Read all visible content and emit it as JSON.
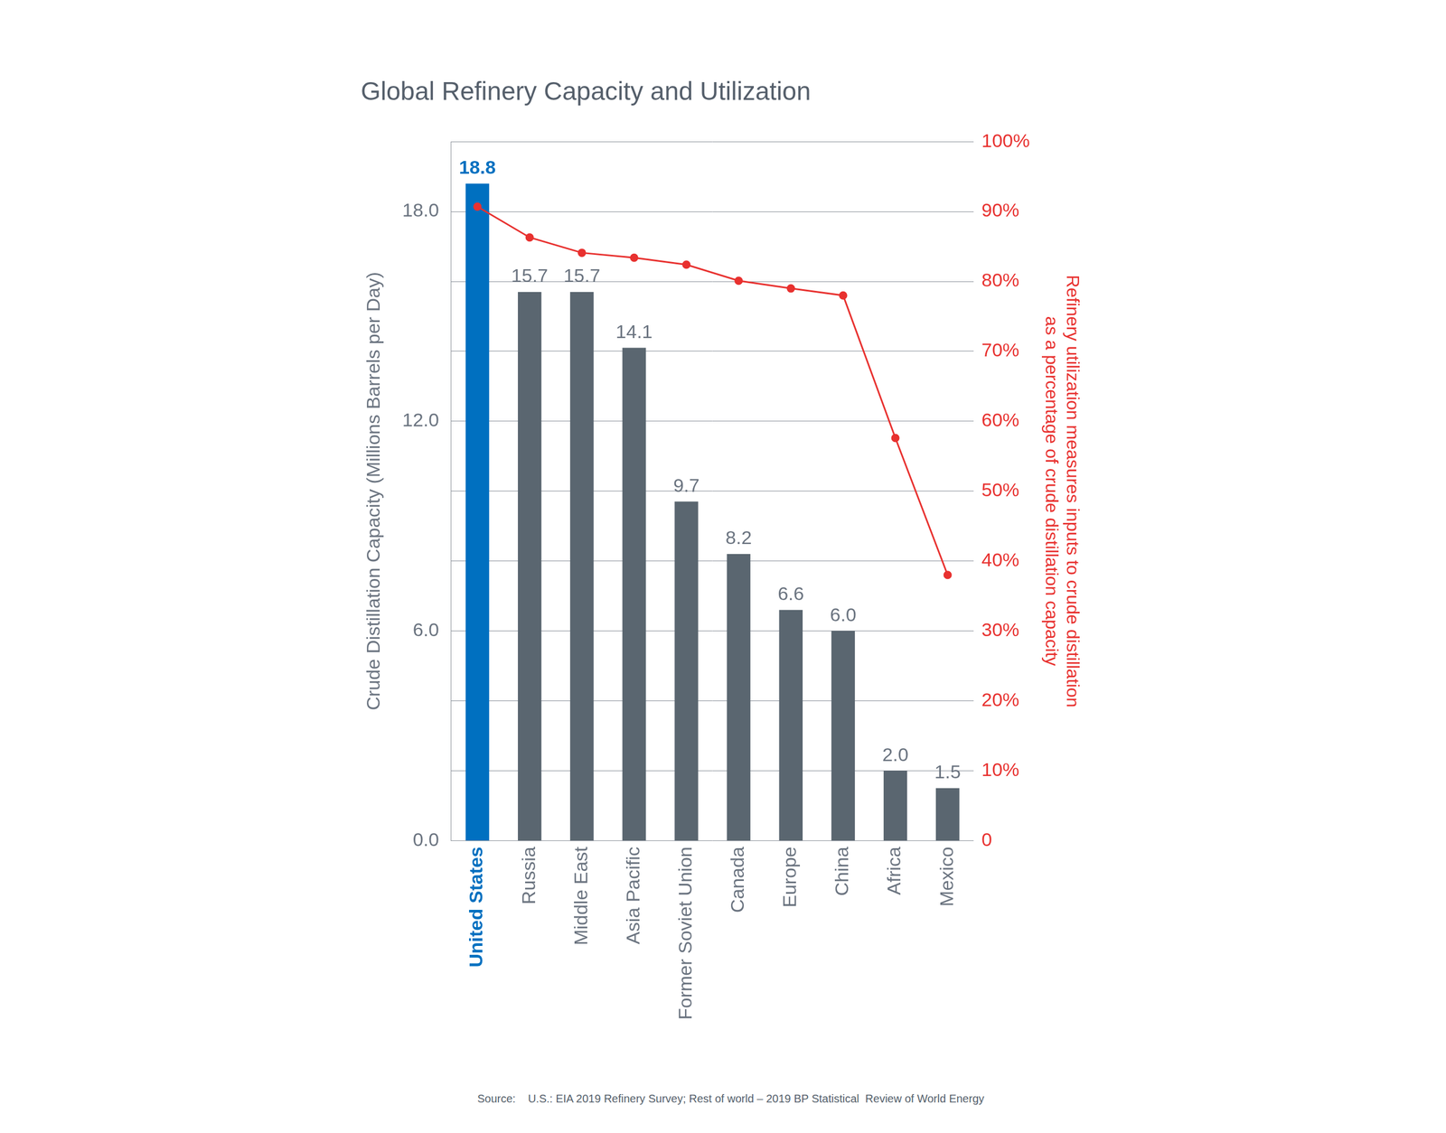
{
  "chart_data": {
    "type": "bar",
    "title": "Global Refinery Capacity and Utilization",
    "categories": [
      "United States",
      "Russia",
      "Middle East",
      "Asia Pacific",
      "Former Soviet Union",
      "Canada",
      "Europe",
      "China",
      "Africa",
      "Mexico"
    ],
    "series": [
      {
        "type": "bar",
        "values": [
          18.8,
          15.7,
          15.7,
          14.1,
          9.7,
          8.2,
          6.6,
          6.0,
          2.0,
          1.5
        ],
        "value_labels": [
          "18.8",
          "15.7",
          "15.7",
          "14.1",
          "9.7",
          "8.2",
          "6.6",
          "6.0",
          "2.0",
          "1.5"
        ],
        "data_labels": true,
        "colors": [
          "#0070c0",
          "#5a6670",
          "#5a6670",
          "#5a6670",
          "#5a6670",
          "#5a6670",
          "#5a6670",
          "#5a6670",
          "#5a6670",
          "#5a6670"
        ]
      },
      {
        "type": "line",
        "axis": "y2",
        "color": "#e8312f",
        "marker": "circle",
        "line_style": "solid",
        "values": [
          90.7,
          86.3,
          84.1,
          83.4,
          82.4,
          80.1,
          79.0,
          78.0,
          57.6,
          38.0
        ]
      }
    ],
    "ylabel": "Crude Distillation Capacity (Millions Barrels per Day)",
    "y2label": [
      "Refinery utilization measures inputs to crude distillation",
      "as a percentage of crude distillation capacity"
    ],
    "ylim": [
      0,
      20
    ],
    "yticks": [
      {
        "value": 0,
        "label": "0.0"
      },
      {
        "value": 6,
        "label": "6.0"
      },
      {
        "value": 12,
        "label": "12.0"
      },
      {
        "value": 18,
        "label": "18.0"
      }
    ],
    "y2lim": [
      0,
      100
    ],
    "y2ticks": [
      {
        "value": 0,
        "label": "0"
      },
      {
        "value": 10,
        "label": "10%"
      },
      {
        "value": 20,
        "label": "20%"
      },
      {
        "value": 30,
        "label": "30%"
      },
      {
        "value": 40,
        "label": "40%"
      },
      {
        "value": 50,
        "label": "50%"
      },
      {
        "value": 60,
        "label": "60%"
      },
      {
        "value": 70,
        "label": "70%"
      },
      {
        "value": 80,
        "label": "80%"
      },
      {
        "value": 90,
        "label": "90%"
      },
      {
        "value": 100,
        "label": "100%"
      }
    ],
    "grid": true,
    "source": "Source:    U.S.: EIA 2019 Refinery Survey; Rest of world – 2019 BP Statistical  Review of World Energy"
  }
}
